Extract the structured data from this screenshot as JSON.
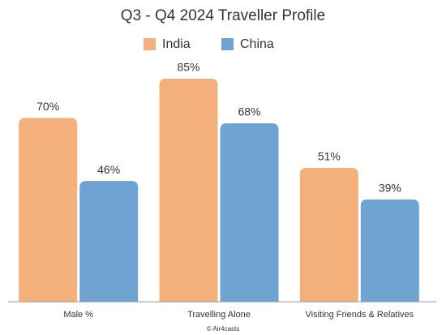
{
  "chart_data": {
    "type": "bar",
    "title": "Q3 - Q4 2024 Traveller Profile",
    "categories": [
      "Male %",
      "Travelling Alone",
      "Visiting Friends & Relatives"
    ],
    "series": [
      {
        "name": "India",
        "color": "#f4b07a",
        "values": [
          70,
          85,
          51
        ],
        "value_labels": [
          "70%",
          "85%",
          "51%"
        ]
      },
      {
        "name": "China",
        "color": "#6fa3d2",
        "values": [
          46,
          68,
          39
        ],
        "value_labels": [
          "46%",
          "68%",
          "39%"
        ]
      }
    ],
    "legend": "top",
    "credit": "© Air4casts"
  }
}
